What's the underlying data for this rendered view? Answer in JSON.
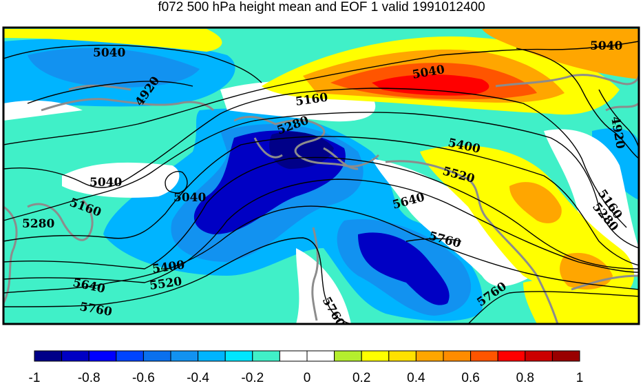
{
  "title": "f072 500 hPa height mean and EOF 1 valid 1991012400",
  "contour_labels": [
    "5040",
    "5040",
    "5040",
    "4920",
    "5160",
    "5280",
    "5400",
    "5520",
    "5640",
    "5760",
    "5040",
    "5040",
    "5160",
    "5280",
    "5400",
    "5520",
    "5640",
    "5760",
    "5760",
    "5760",
    "4920",
    "5160",
    "5280"
  ],
  "colorbar": {
    "colors": [
      "#000088",
      "#0000c4",
      "#0000ff",
      "#0044ff",
      "#0a70ee",
      "#1292f0",
      "#00b4ff",
      "#00e6ff",
      "#40f0c8",
      "#ffffff",
      "#ffffff",
      "#b4ee2e",
      "#ffff00",
      "#ffe100",
      "#ffa600",
      "#ff8c00",
      "#ff5500",
      "#ff0000",
      "#cc0000",
      "#990000"
    ],
    "tick_labels": [
      "-1",
      "-0.8",
      "-0.6",
      "-0.4",
      "-0.2",
      "0",
      "0.2",
      "0.4",
      "0.6",
      "0.8",
      "1"
    ]
  }
}
